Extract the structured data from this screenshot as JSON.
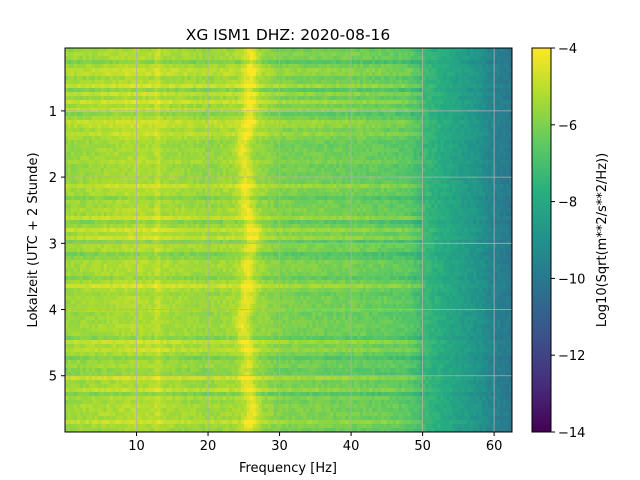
{
  "chart_data": {
    "type": "heatmap",
    "title": "XG ISM1  DHZ: 2020-08-16",
    "xlabel": "Frequency [Hz]",
    "ylabel": "Lokalzeit (UTC + 2 Stunde)",
    "colorbar_label": "Log10(Sqrt(m**2/s**2/Hz))",
    "colormap": "viridis",
    "xlim": [
      0,
      62.5
    ],
    "ylim": [
      5.85,
      0.05
    ],
    "y_inverted": true,
    "xticks": [
      10,
      20,
      30,
      40,
      50,
      60
    ],
    "yticks": [
      1,
      2,
      3,
      4,
      5
    ],
    "clim": [
      -14,
      -4
    ],
    "colorbar_ticks": [
      -4,
      -6,
      -8,
      -10,
      -12,
      -14
    ],
    "grid": true,
    "grid_color": "#b0b0b0",
    "feature_notes": [
      {
        "frequency_hz": 25.5,
        "value": -4.3
      },
      {
        "frequency_hz": 13,
        "value": -5.3
      },
      {
        "frequency_hz": 60,
        "value": -9.6
      }
    ],
    "spectrum_profile": {
      "frequency_hz": [
        0,
        5,
        10,
        15,
        20,
        24,
        25.5,
        27,
        30,
        35,
        40,
        45,
        48,
        50,
        52,
        55,
        58,
        60,
        62.5
      ],
      "value": [
        -5.6,
        -5.4,
        -5.2,
        -5.4,
        -5.6,
        -5.4,
        -4.3,
        -5.5,
        -6.0,
        -6.1,
        -6.2,
        -6.4,
        -6.6,
        -7.2,
        -7.7,
        -8.3,
        -8.9,
        -9.6,
        -10.0
      ]
    }
  }
}
